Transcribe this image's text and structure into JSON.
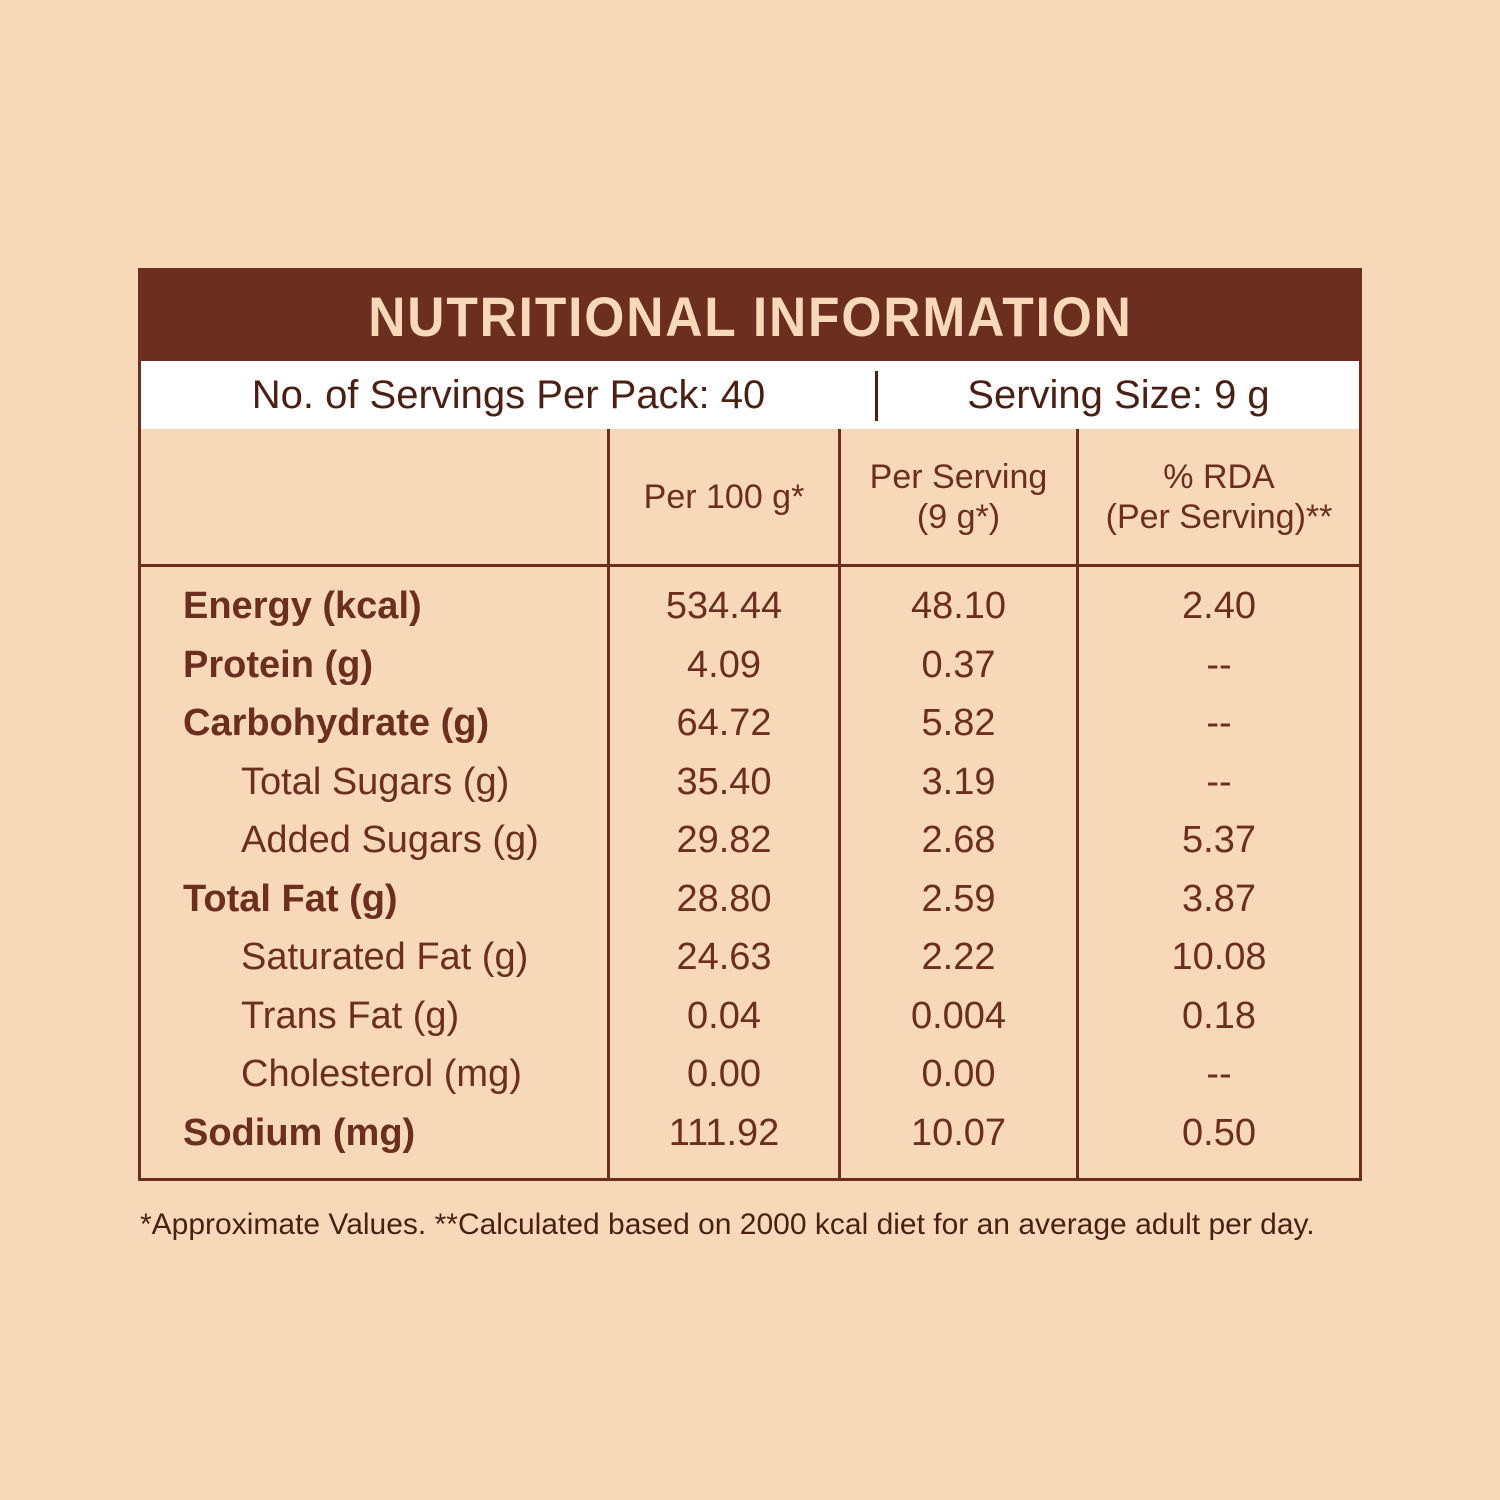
{
  "title": "NUTRITIONAL INFORMATION",
  "servings_per_pack": "No. of Servings Per Pack: 40",
  "serving_size": "Serving Size: 9 g",
  "columns": {
    "per100": "Per 100 g*",
    "per_serving_line1": "Per Serving",
    "per_serving_line2": "(9 g*)",
    "rda_line1": "% RDA",
    "rda_line2": "(Per Serving)**"
  },
  "rows": [
    {
      "label": "Energy (kcal)",
      "bold": true,
      "per100": "534.44",
      "per_serving": "48.10",
      "rda": "2.40"
    },
    {
      "label": "Protein (g)",
      "bold": true,
      "per100": "4.09",
      "per_serving": "0.37",
      "rda": "--"
    },
    {
      "label": "Carbohydrate (g)",
      "bold": true,
      "per100": "64.72",
      "per_serving": "5.82",
      "rda": "--"
    },
    {
      "label": "Total Sugars (g)",
      "bold": false,
      "per100": "35.40",
      "per_serving": "3.19",
      "rda": "--"
    },
    {
      "label": "Added Sugars (g)",
      "bold": false,
      "per100": "29.82",
      "per_serving": "2.68",
      "rda": "5.37"
    },
    {
      "label": "Total Fat (g)",
      "bold": true,
      "per100": "28.80",
      "per_serving": "2.59",
      "rda": "3.87"
    },
    {
      "label": "Saturated Fat (g)",
      "bold": false,
      "per100": "24.63",
      "per_serving": "2.22",
      "rda": "10.08"
    },
    {
      "label": "Trans Fat (g)",
      "bold": false,
      "per100": "0.04",
      "per_serving": "0.004",
      "rda": "0.18"
    },
    {
      "label": "Cholesterol (mg)",
      "bold": false,
      "per100": "0.00",
      "per_serving": "0.00",
      "rda": "--"
    },
    {
      "label": "Sodium (mg)",
      "bold": true,
      "per100": "111.92",
      "per_serving": "10.07",
      "rda": "0.50"
    }
  ],
  "footnote": "*Approximate Values. **Calculated based on 2000 kcal diet for an average adult per day.",
  "colors": {
    "background": "#f7d9b9",
    "brown": "#6b2e1f",
    "serving_bar": "#ffffff"
  }
}
